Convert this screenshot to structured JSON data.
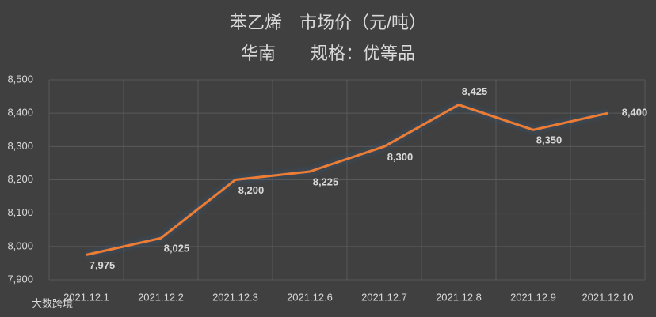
{
  "chart_data": {
    "type": "line",
    "title": "苯乙烯　市场价（元/吨）",
    "subtitle": "华南　　规格：优等品",
    "categories": [
      "2021.12.1",
      "2021.12.2",
      "2021.12.3",
      "2021.12.6",
      "2021.12.7",
      "2021.12.8",
      "2021.12.9",
      "2021.12.10"
    ],
    "values": [
      7975,
      8025,
      8200,
      8225,
      8300,
      8425,
      8350,
      8400
    ],
    "value_labels": [
      "7,975",
      "8,025",
      "8,200",
      "8,225",
      "8,300",
      "8,425",
      "8,350",
      "8,400"
    ],
    "color": "#ed7d31",
    "ylim": [
      7900,
      8500
    ],
    "yticks": [
      {
        "value": 7900,
        "label": "7,900"
      },
      {
        "value": 8000,
        "label": "8,000"
      },
      {
        "value": 8100,
        "label": "8,100"
      },
      {
        "value": 8200,
        "label": "8,200"
      },
      {
        "value": 8300,
        "label": "8,300"
      },
      {
        "value": 8400,
        "label": "8,400"
      },
      {
        "value": 8500,
        "label": "8,500"
      }
    ],
    "grid": true,
    "watermark": "大数跨境"
  }
}
